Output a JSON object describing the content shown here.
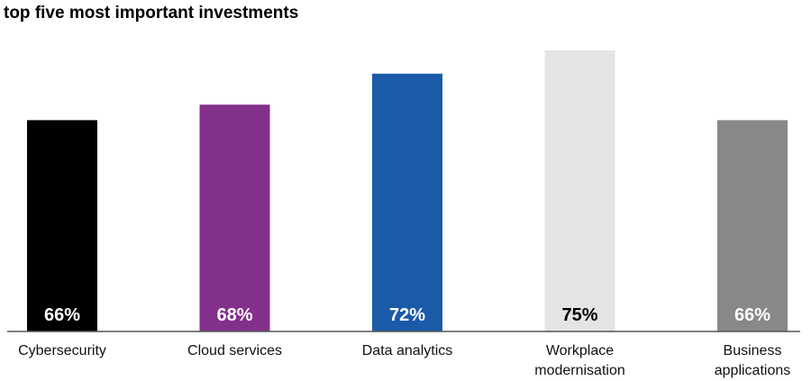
{
  "chart_data": {
    "type": "bar",
    "title": "top five most important investments",
    "categories": [
      [
        "Cybersecurity"
      ],
      [
        "Cloud services"
      ],
      [
        "Data analytics"
      ],
      [
        "Workplace",
        "modernisation"
      ],
      [
        "Business",
        "applications"
      ]
    ],
    "values": [
      66,
      68,
      72,
      75,
      66
    ],
    "value_labels": [
      "66%",
      "68%",
      "72%",
      "75%",
      "66%"
    ],
    "colors": [
      "#000000",
      "#83308a",
      "#1b5aa8",
      "#e4e4e4",
      "#888888"
    ],
    "label_colors": [
      "#ffffff",
      "#ffffff",
      "#ffffff",
      "#000000",
      "#ffffff"
    ],
    "xlabel": "",
    "ylabel": "",
    "grid": false,
    "legend": "none"
  }
}
